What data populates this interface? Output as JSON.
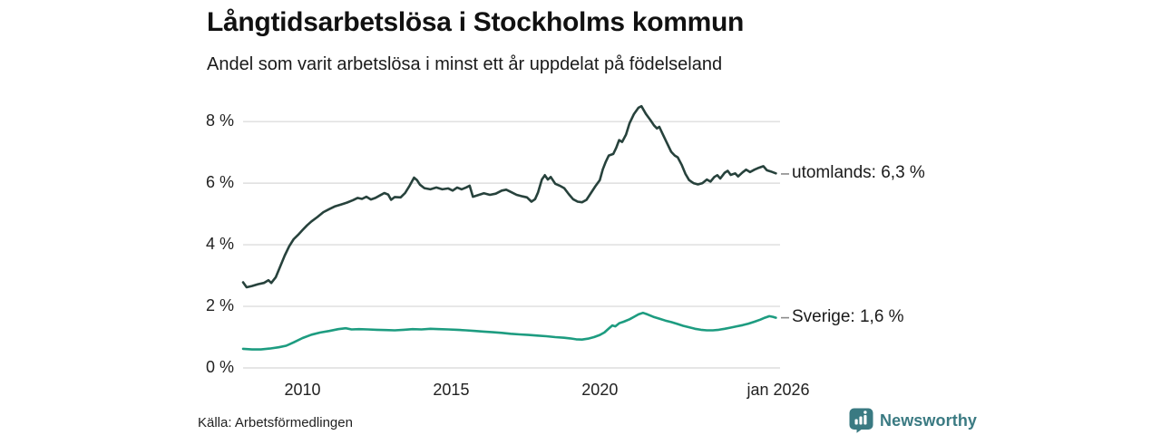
{
  "header": {
    "title": "Långtidsarbetslösa i Stockholms kommun",
    "subtitle": "Andel som varit arbetslösa i minst ett år uppdelat på födelseland"
  },
  "footer": {
    "source": "Källa: Arbetsförmedlingen",
    "brand_name": "Newsworthy",
    "brand_color": "#3a7a82",
    "logo_icon": "speech-bubble-bar-chart-icon"
  },
  "chart_data": {
    "type": "line",
    "title": "Långtidsarbetslösa i Stockholms kommun",
    "subtitle": "Andel som varit arbetslösa i minst ett år uppdelat på födelseland",
    "xlabel": "",
    "ylabel": "",
    "grid": "horizontal",
    "grid_color": "#dedede",
    "legend_position": "right-end-labels",
    "xlim": [
      2008.0,
      2026.0
    ],
    "ylim": [
      0,
      8.8
    ],
    "y_ticks": [
      {
        "label": "0 %",
        "value": 0
      },
      {
        "label": "2 %",
        "value": 2
      },
      {
        "label": "4 %",
        "value": 4
      },
      {
        "label": "6 %",
        "value": 6
      },
      {
        "label": "8 %",
        "value": 8
      }
    ],
    "x_ticks": [
      {
        "label": "2010",
        "value": 2010
      },
      {
        "label": "2015",
        "value": 2015
      },
      {
        "label": "2020",
        "value": 2020
      },
      {
        "label": "jan 2026",
        "value": 2026
      }
    ],
    "series": [
      {
        "name": "utomlands",
        "end_label": "utomlands: 6,3 %",
        "end_value": 6.3,
        "color": "#27423c",
        "points": [
          [
            2008.0,
            2.78
          ],
          [
            2008.12,
            2.62
          ],
          [
            2008.3,
            2.66
          ],
          [
            2008.5,
            2.72
          ],
          [
            2008.7,
            2.76
          ],
          [
            2008.85,
            2.85
          ],
          [
            2008.95,
            2.76
          ],
          [
            2009.1,
            2.95
          ],
          [
            2009.25,
            3.3
          ],
          [
            2009.4,
            3.65
          ],
          [
            2009.55,
            3.95
          ],
          [
            2009.7,
            4.18
          ],
          [
            2009.85,
            4.32
          ],
          [
            2010.0,
            4.48
          ],
          [
            2010.15,
            4.63
          ],
          [
            2010.3,
            4.76
          ],
          [
            2010.5,
            4.9
          ],
          [
            2010.7,
            5.06
          ],
          [
            2010.9,
            5.16
          ],
          [
            2011.1,
            5.25
          ],
          [
            2011.3,
            5.31
          ],
          [
            2011.5,
            5.37
          ],
          [
            2011.7,
            5.45
          ],
          [
            2011.85,
            5.52
          ],
          [
            2012.0,
            5.49
          ],
          [
            2012.15,
            5.56
          ],
          [
            2012.3,
            5.47
          ],
          [
            2012.45,
            5.52
          ],
          [
            2012.6,
            5.6
          ],
          [
            2012.75,
            5.68
          ],
          [
            2012.88,
            5.63
          ],
          [
            2012.98,
            5.46
          ],
          [
            2013.1,
            5.55
          ],
          [
            2013.3,
            5.54
          ],
          [
            2013.45,
            5.68
          ],
          [
            2013.6,
            5.92
          ],
          [
            2013.75,
            6.18
          ],
          [
            2013.85,
            6.1
          ],
          [
            2013.95,
            5.95
          ],
          [
            2014.1,
            5.84
          ],
          [
            2014.3,
            5.8
          ],
          [
            2014.5,
            5.86
          ],
          [
            2014.7,
            5.8
          ],
          [
            2014.9,
            5.83
          ],
          [
            2015.05,
            5.76
          ],
          [
            2015.2,
            5.86
          ],
          [
            2015.35,
            5.8
          ],
          [
            2015.5,
            5.86
          ],
          [
            2015.62,
            5.92
          ],
          [
            2015.73,
            5.56
          ],
          [
            2015.9,
            5.61
          ],
          [
            2016.1,
            5.67
          ],
          [
            2016.3,
            5.62
          ],
          [
            2016.5,
            5.66
          ],
          [
            2016.7,
            5.76
          ],
          [
            2016.85,
            5.79
          ],
          [
            2017.0,
            5.72
          ],
          [
            2017.2,
            5.62
          ],
          [
            2017.4,
            5.57
          ],
          [
            2017.55,
            5.54
          ],
          [
            2017.7,
            5.4
          ],
          [
            2017.82,
            5.48
          ],
          [
            2017.92,
            5.7
          ],
          [
            2018.05,
            6.12
          ],
          [
            2018.15,
            6.26
          ],
          [
            2018.25,
            6.12
          ],
          [
            2018.35,
            6.2
          ],
          [
            2018.5,
            5.98
          ],
          [
            2018.65,
            5.92
          ],
          [
            2018.8,
            5.84
          ],
          [
            2018.95,
            5.65
          ],
          [
            2019.1,
            5.48
          ],
          [
            2019.25,
            5.4
          ],
          [
            2019.4,
            5.38
          ],
          [
            2019.55,
            5.46
          ],
          [
            2019.7,
            5.68
          ],
          [
            2019.85,
            5.9
          ],
          [
            2020.0,
            6.1
          ],
          [
            2020.1,
            6.45
          ],
          [
            2020.2,
            6.7
          ],
          [
            2020.3,
            6.9
          ],
          [
            2020.45,
            6.95
          ],
          [
            2020.55,
            7.15
          ],
          [
            2020.65,
            7.4
          ],
          [
            2020.75,
            7.34
          ],
          [
            2020.88,
            7.58
          ],
          [
            2021.0,
            7.95
          ],
          [
            2021.15,
            8.25
          ],
          [
            2021.3,
            8.45
          ],
          [
            2021.4,
            8.5
          ],
          [
            2021.55,
            8.25
          ],
          [
            2021.7,
            8.05
          ],
          [
            2021.82,
            7.88
          ],
          [
            2021.92,
            7.78
          ],
          [
            2022.0,
            7.83
          ],
          [
            2022.1,
            7.62
          ],
          [
            2022.25,
            7.32
          ],
          [
            2022.4,
            7.02
          ],
          [
            2022.52,
            6.9
          ],
          [
            2022.62,
            6.84
          ],
          [
            2022.75,
            6.6
          ],
          [
            2022.88,
            6.3
          ],
          [
            2023.0,
            6.1
          ],
          [
            2023.15,
            6.0
          ],
          [
            2023.3,
            5.96
          ],
          [
            2023.45,
            6.0
          ],
          [
            2023.6,
            6.12
          ],
          [
            2023.72,
            6.05
          ],
          [
            2023.85,
            6.2
          ],
          [
            2023.95,
            6.26
          ],
          [
            2024.05,
            6.15
          ],
          [
            2024.2,
            6.34
          ],
          [
            2024.3,
            6.4
          ],
          [
            2024.4,
            6.27
          ],
          [
            2024.55,
            6.32
          ],
          [
            2024.65,
            6.22
          ],
          [
            2024.8,
            6.35
          ],
          [
            2024.92,
            6.44
          ],
          [
            2025.05,
            6.36
          ],
          [
            2025.2,
            6.44
          ],
          [
            2025.35,
            6.5
          ],
          [
            2025.5,
            6.55
          ],
          [
            2025.62,
            6.42
          ],
          [
            2025.75,
            6.38
          ],
          [
            2025.92,
            6.32
          ]
        ]
      },
      {
        "name": "Sverige",
        "end_label": "Sverige: 1,6 %",
        "end_value": 1.63,
        "color": "#1d9c80",
        "points": [
          [
            2008.0,
            0.62
          ],
          [
            2008.3,
            0.6
          ],
          [
            2008.6,
            0.6
          ],
          [
            2008.9,
            0.63
          ],
          [
            2009.2,
            0.67
          ],
          [
            2009.45,
            0.72
          ],
          [
            2009.7,
            0.83
          ],
          [
            2010.0,
            0.97
          ],
          [
            2010.3,
            1.08
          ],
          [
            2010.6,
            1.15
          ],
          [
            2010.9,
            1.2
          ],
          [
            2011.2,
            1.26
          ],
          [
            2011.45,
            1.29
          ],
          [
            2011.65,
            1.25
          ],
          [
            2011.9,
            1.26
          ],
          [
            2012.2,
            1.25
          ],
          [
            2012.5,
            1.24
          ],
          [
            2012.8,
            1.23
          ],
          [
            2013.1,
            1.22
          ],
          [
            2013.4,
            1.24
          ],
          [
            2013.7,
            1.26
          ],
          [
            2014.0,
            1.25
          ],
          [
            2014.3,
            1.27
          ],
          [
            2014.6,
            1.26
          ],
          [
            2014.9,
            1.25
          ],
          [
            2015.2,
            1.24
          ],
          [
            2015.5,
            1.22
          ],
          [
            2015.8,
            1.2
          ],
          [
            2016.1,
            1.18
          ],
          [
            2016.4,
            1.16
          ],
          [
            2016.7,
            1.14
          ],
          [
            2017.0,
            1.11
          ],
          [
            2017.3,
            1.09
          ],
          [
            2017.6,
            1.07
          ],
          [
            2017.9,
            1.05
          ],
          [
            2018.2,
            1.03
          ],
          [
            2018.5,
            1.0
          ],
          [
            2018.8,
            0.98
          ],
          [
            2019.0,
            0.96
          ],
          [
            2019.2,
            0.93
          ],
          [
            2019.4,
            0.92
          ],
          [
            2019.6,
            0.95
          ],
          [
            2019.8,
            1.0
          ],
          [
            2020.0,
            1.07
          ],
          [
            2020.15,
            1.15
          ],
          [
            2020.3,
            1.28
          ],
          [
            2020.42,
            1.38
          ],
          [
            2020.52,
            1.35
          ],
          [
            2020.65,
            1.45
          ],
          [
            2020.8,
            1.5
          ],
          [
            2021.0,
            1.58
          ],
          [
            2021.15,
            1.66
          ],
          [
            2021.3,
            1.74
          ],
          [
            2021.45,
            1.79
          ],
          [
            2021.6,
            1.74
          ],
          [
            2021.8,
            1.66
          ],
          [
            2022.0,
            1.6
          ],
          [
            2022.2,
            1.54
          ],
          [
            2022.4,
            1.49
          ],
          [
            2022.6,
            1.43
          ],
          [
            2022.8,
            1.37
          ],
          [
            2023.0,
            1.32
          ],
          [
            2023.2,
            1.27
          ],
          [
            2023.4,
            1.24
          ],
          [
            2023.6,
            1.22
          ],
          [
            2023.8,
            1.22
          ],
          [
            2024.0,
            1.24
          ],
          [
            2024.2,
            1.27
          ],
          [
            2024.4,
            1.31
          ],
          [
            2024.6,
            1.35
          ],
          [
            2024.8,
            1.39
          ],
          [
            2025.0,
            1.44
          ],
          [
            2025.2,
            1.5
          ],
          [
            2025.4,
            1.57
          ],
          [
            2025.55,
            1.63
          ],
          [
            2025.7,
            1.68
          ],
          [
            2025.82,
            1.66
          ],
          [
            2025.92,
            1.63
          ]
        ]
      }
    ]
  }
}
